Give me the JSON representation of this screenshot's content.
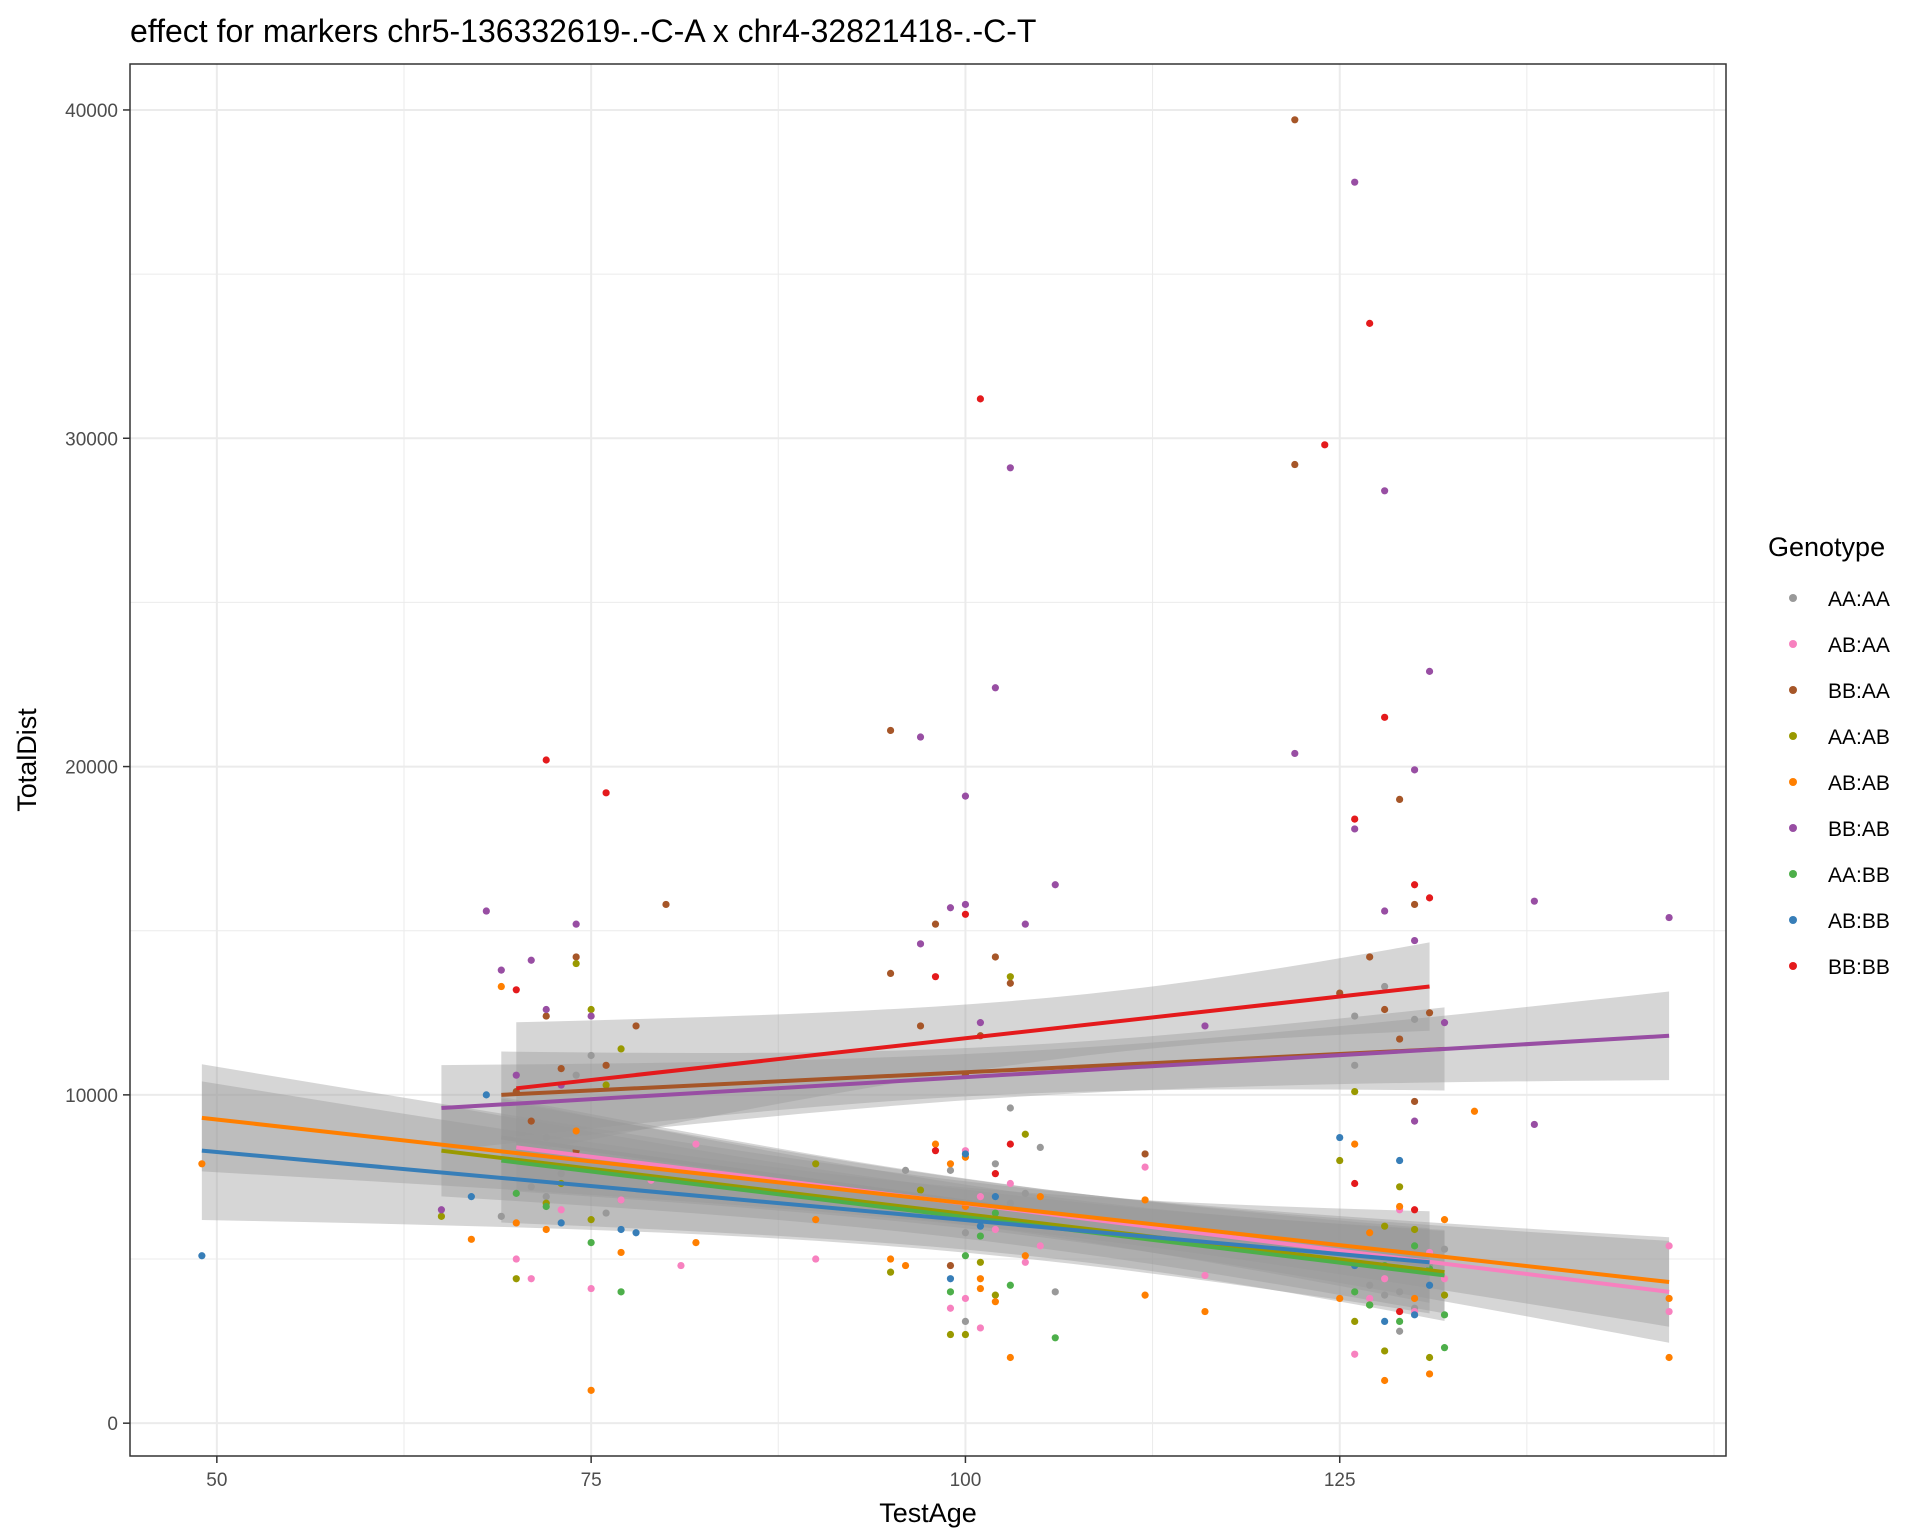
{
  "chart_data": {
    "type": "scatter",
    "title": "effect for markers chr5-136332619-.-C-A x chr4-32821418-.-C-T",
    "xlabel": "TestAge",
    "ylabel": "TotalDist",
    "xlim": [
      44.2,
      150.8
    ],
    "ylim": [
      -1000,
      41400
    ],
    "x_ticks": [
      50,
      75,
      100,
      125
    ],
    "y_ticks": [
      0,
      10000,
      20000,
      30000,
      40000
    ],
    "x_tick_labels": [
      "50",
      "75",
      "100",
      "125"
    ],
    "y_tick_labels": [
      "0",
      "10000",
      "20000",
      "30000",
      "40000"
    ],
    "grid": true,
    "legend": {
      "title": "Genotype",
      "position": "right"
    },
    "series": [
      {
        "name": "AA:AA",
        "color": "#999999",
        "points": [
          [
            69,
            6300
          ],
          [
            71,
            7200
          ],
          [
            72,
            6900
          ],
          [
            73,
            7600
          ],
          [
            74,
            8200
          ],
          [
            75,
            11200
          ],
          [
            76,
            6400
          ],
          [
            77,
            6800
          ],
          [
            74,
            10600
          ],
          [
            72,
            8700
          ],
          [
            99,
            7700
          ],
          [
            100,
            5800
          ],
          [
            101,
            6200
          ],
          [
            102,
            7900
          ],
          [
            103,
            6700
          ],
          [
            104,
            7000
          ],
          [
            105,
            8400
          ],
          [
            106,
            4000
          ],
          [
            100,
            3100
          ],
          [
            103,
            9600
          ],
          [
            96,
            7700
          ],
          [
            127,
            4200
          ],
          [
            128,
            3900
          ],
          [
            129,
            2800
          ],
          [
            130,
            3500
          ],
          [
            131,
            4800
          ],
          [
            132,
            5300
          ],
          [
            126,
            12400
          ],
          [
            128,
            13300
          ],
          [
            130,
            12300
          ],
          [
            126,
            10900
          ],
          [
            129,
            4000
          ]
        ],
        "fit": {
          "x": [
            69,
            131
          ],
          "y": [
            8700,
            4800
          ]
        }
      },
      {
        "name": "AB:AA",
        "color": "#F781BF",
        "points": [
          [
            70,
            5000
          ],
          [
            71,
            4400
          ],
          [
            73,
            6500
          ],
          [
            75,
            4100
          ],
          [
            77,
            6800
          ],
          [
            79,
            7400
          ],
          [
            81,
            4800
          ],
          [
            82,
            8500
          ],
          [
            90,
            5000
          ],
          [
            99,
            3500
          ],
          [
            100,
            3800
          ],
          [
            101,
            6900
          ],
          [
            102,
            5900
          ],
          [
            103,
            7300
          ],
          [
            104,
            4900
          ],
          [
            105,
            5400
          ],
          [
            100,
            8300
          ],
          [
            112,
            7800
          ],
          [
            116,
            4500
          ],
          [
            126,
            2100
          ],
          [
            127,
            3800
          ],
          [
            128,
            4400
          ],
          [
            129,
            6500
          ],
          [
            130,
            3400
          ],
          [
            131,
            5200
          ],
          [
            132,
            4400
          ],
          [
            147,
            5400
          ],
          [
            147,
            3400
          ],
          [
            101,
            2900
          ]
        ],
        "fit": {
          "x": [
            70,
            147
          ],
          "y": [
            8400,
            4000
          ]
        }
      },
      {
        "name": "BB:AA",
        "color": "#A65628",
        "points": [
          [
            70,
            10100
          ],
          [
            72,
            12400
          ],
          [
            73,
            10800
          ],
          [
            74,
            14200
          ],
          [
            76,
            10900
          ],
          [
            78,
            12100
          ],
          [
            80,
            15800
          ],
          [
            71,
            9200
          ],
          [
            74,
            8300
          ],
          [
            95,
            21100
          ],
          [
            95,
            13700
          ],
          [
            98,
            15200
          ],
          [
            97,
            12100
          ],
          [
            100,
            10600
          ],
          [
            101,
            11800
          ],
          [
            102,
            14200
          ],
          [
            103,
            13400
          ],
          [
            99,
            4800
          ],
          [
            112,
            8200
          ],
          [
            122,
            39700
          ],
          [
            122,
            29200
          ],
          [
            125,
            13100
          ],
          [
            127,
            14200
          ],
          [
            128,
            12600
          ],
          [
            129,
            19000
          ],
          [
            130,
            15800
          ],
          [
            131,
            12500
          ],
          [
            129,
            11700
          ],
          [
            130,
            9800
          ]
        ],
        "fit": {
          "x": [
            69,
            132
          ],
          "y": [
            10000,
            11400
          ]
        }
      },
      {
        "name": "AA:AB",
        "color": "#999900",
        "points": [
          [
            65,
            6300
          ],
          [
            70,
            4400
          ],
          [
            72,
            6700
          ],
          [
            74,
            14000
          ],
          [
            75,
            12600
          ],
          [
            76,
            10300
          ],
          [
            77,
            11400
          ],
          [
            73,
            7300
          ],
          [
            75,
            6200
          ],
          [
            90,
            7900
          ],
          [
            95,
            4600
          ],
          [
            99,
            2700
          ],
          [
            100,
            2700
          ],
          [
            101,
            4900
          ],
          [
            102,
            3900
          ],
          [
            103,
            13600
          ],
          [
            104,
            8800
          ],
          [
            97,
            7100
          ],
          [
            125,
            8000
          ],
          [
            126,
            3100
          ],
          [
            127,
            3600
          ],
          [
            128,
            2200
          ],
          [
            129,
            7200
          ],
          [
            130,
            5900
          ],
          [
            131,
            2000
          ],
          [
            132,
            3900
          ],
          [
            126,
            10100
          ],
          [
            128,
            6000
          ]
        ],
        "fit": {
          "x": [
            65,
            132
          ],
          "y": [
            8300,
            4600
          ]
        }
      },
      {
        "name": "AB:AB",
        "color": "#FF7F00",
        "points": [
          [
            49,
            7900
          ],
          [
            67,
            5600
          ],
          [
            69,
            13300
          ],
          [
            70,
            6100
          ],
          [
            72,
            5900
          ],
          [
            74,
            8900
          ],
          [
            75,
            1000
          ],
          [
            77,
            5200
          ],
          [
            82,
            5500
          ],
          [
            90,
            6200
          ],
          [
            95,
            5000
          ],
          [
            96,
            4800
          ],
          [
            98,
            8500
          ],
          [
            99,
            7900
          ],
          [
            100,
            6600
          ],
          [
            101,
            4400
          ],
          [
            102,
            3700
          ],
          [
            103,
            2000
          ],
          [
            104,
            5100
          ],
          [
            105,
            6900
          ],
          [
            112,
            6800
          ],
          [
            112,
            3900
          ],
          [
            116,
            3400
          ],
          [
            125,
            3800
          ],
          [
            126,
            8500
          ],
          [
            127,
            5800
          ],
          [
            128,
            1300
          ],
          [
            129,
            6600
          ],
          [
            130,
            3800
          ],
          [
            131,
            1500
          ],
          [
            132,
            6200
          ],
          [
            134,
            9500
          ],
          [
            147,
            3800
          ],
          [
            147,
            2000
          ],
          [
            101,
            4100
          ],
          [
            100,
            8100
          ]
        ],
        "fit": {
          "x": [
            49,
            147
          ],
          "y": [
            9300,
            4300
          ]
        }
      },
      {
        "name": "BB:AB",
        "color": "#984EA3",
        "points": [
          [
            65,
            6500
          ],
          [
            68,
            15600
          ],
          [
            69,
            13800
          ],
          [
            71,
            14100
          ],
          [
            72,
            12600
          ],
          [
            74,
            15200
          ],
          [
            75,
            12400
          ],
          [
            70,
            10600
          ],
          [
            73,
            10300
          ],
          [
            97,
            14600
          ],
          [
            97,
            20900
          ],
          [
            99,
            15700
          ],
          [
            100,
            19100
          ],
          [
            100,
            15800
          ],
          [
            102,
            22400
          ],
          [
            103,
            29100
          ],
          [
            104,
            15200
          ],
          [
            106,
            16400
          ],
          [
            101,
            12200
          ],
          [
            116,
            12100
          ],
          [
            122,
            20400
          ],
          [
            126,
            37800
          ],
          [
            126,
            18100
          ],
          [
            128,
            28400
          ],
          [
            128,
            15600
          ],
          [
            130,
            19900
          ],
          [
            130,
            14700
          ],
          [
            131,
            22900
          ],
          [
            132,
            12200
          ],
          [
            138,
            15900
          ],
          [
            138,
            9100
          ],
          [
            147,
            15400
          ],
          [
            130,
            9200
          ]
        ],
        "fit": {
          "x": [
            65,
            147
          ],
          "y": [
            9600,
            11800
          ]
        }
      },
      {
        "name": "AA:BB",
        "color": "#4DAF4A",
        "points": [
          [
            70,
            7000
          ],
          [
            72,
            6600
          ],
          [
            75,
            5500
          ],
          [
            77,
            4000
          ],
          [
            99,
            4000
          ],
          [
            100,
            5100
          ],
          [
            101,
            5700
          ],
          [
            102,
            6400
          ],
          [
            103,
            4200
          ],
          [
            106,
            2600
          ],
          [
            126,
            4000
          ],
          [
            127,
            3600
          ],
          [
            128,
            4800
          ],
          [
            129,
            3100
          ],
          [
            130,
            5400
          ],
          [
            131,
            4700
          ],
          [
            132,
            3300
          ],
          [
            132,
            2300
          ]
        ],
        "fit": {
          "x": [
            69,
            132
          ],
          "y": [
            8000,
            4500
          ]
        }
      },
      {
        "name": "AB:BB",
        "color": "#377EB8",
        "points": [
          [
            49,
            5100
          ],
          [
            67,
            6900
          ],
          [
            68,
            10000
          ],
          [
            73,
            6100
          ],
          [
            77,
            5900
          ],
          [
            78,
            5800
          ],
          [
            99,
            4400
          ],
          [
            100,
            8200
          ],
          [
            101,
            6000
          ],
          [
            102,
            6900
          ],
          [
            125,
            8700
          ],
          [
            128,
            3100
          ],
          [
            129,
            8000
          ],
          [
            130,
            3300
          ],
          [
            131,
            4200
          ],
          [
            126,
            4800
          ]
        ],
        "fit": {
          "x": [
            49,
            131
          ],
          "y": [
            8300,
            4900
          ]
        }
      },
      {
        "name": "BB:BB",
        "color": "#E41A1C",
        "points": [
          [
            70,
            13200
          ],
          [
            72,
            20200
          ],
          [
            76,
            19200
          ],
          [
            98,
            13600
          ],
          [
            98,
            8300
          ],
          [
            100,
            15500
          ],
          [
            101,
            31200
          ],
          [
            103,
            8500
          ],
          [
            102,
            7600
          ],
          [
            124,
            29800
          ],
          [
            127,
            33500
          ],
          [
            128,
            21500
          ],
          [
            126,
            18400
          ],
          [
            126,
            7300
          ],
          [
            130,
            16400
          ],
          [
            131,
            16000
          ],
          [
            129,
            3400
          ],
          [
            130,
            6500
          ]
        ],
        "fit": {
          "x": [
            70,
            131
          ],
          "y": [
            10200,
            13300
          ]
        }
      }
    ]
  }
}
